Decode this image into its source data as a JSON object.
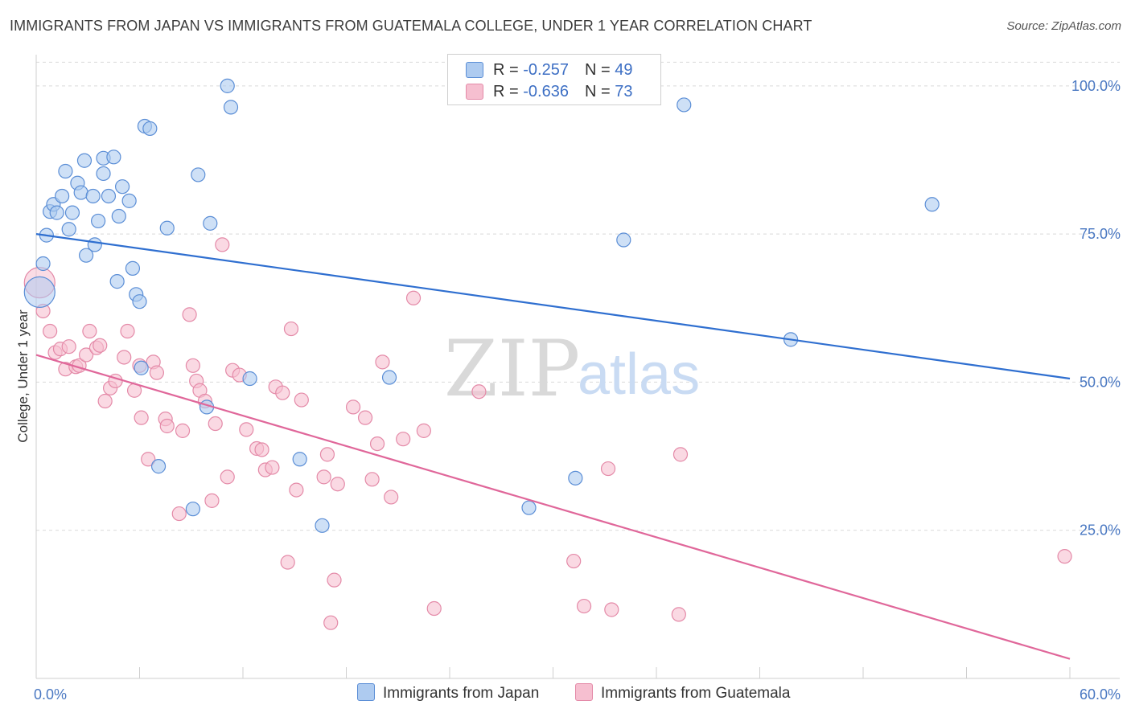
{
  "title": "IMMIGRANTS FROM JAPAN VS IMMIGRANTS FROM GUATEMALA COLLEGE, UNDER 1 YEAR CORRELATION CHART",
  "source": "Source: ZipAtlas.com",
  "watermark": {
    "zip": "ZIP",
    "atlas": "atlas"
  },
  "legend": {
    "japan": {
      "r_label": "R = ",
      "r_value": "-0.257",
      "n_label": "N = ",
      "n_value": "49"
    },
    "guatemala": {
      "r_label": "R = ",
      "r_value": "-0.636",
      "n_label": "N = ",
      "n_value": "73"
    }
  },
  "colors": {
    "japan_fill": "#aecbf0",
    "japan_stroke": "#5b8ed6",
    "japan_line": "#2f6fd0",
    "guatemala_fill": "#f6bfd0",
    "guatemala_stroke": "#e48aa8",
    "guatemala_line": "#e0679a",
    "grid": "#d9d9d9",
    "tick_text": "#4a78c2"
  },
  "chart_data": {
    "type": "scatter",
    "title": "IMMIGRANTS FROM JAPAN VS IMMIGRANTS FROM GUATEMALA COLLEGE, UNDER 1 YEAR CORRELATION CHART",
    "xlabel": "",
    "ylabel": "College, Under 1 year",
    "xlim": [
      0,
      60
    ],
    "ylim": [
      0,
      105
    ],
    "x_tick_labels": [
      "0.0%",
      "60.0%"
    ],
    "y_ticks": [
      25,
      50,
      75,
      100
    ],
    "y_tick_labels": [
      "25.0%",
      "50.0%",
      "75.0%",
      "100.0%"
    ],
    "grid": "horizontal dashed",
    "legend_placement": "top-center",
    "series": [
      {
        "name": "Immigrants from Japan",
        "trend": {
          "x": [
            0,
            60
          ],
          "y": [
            75.0,
            50.6
          ]
        },
        "points": [
          {
            "x": 0.2,
            "y": 65.2,
            "big": true
          },
          {
            "x": 0.4,
            "y": 70.0
          },
          {
            "x": 0.6,
            "y": 74.8
          },
          {
            "x": 0.8,
            "y": 78.8
          },
          {
            "x": 1.0,
            "y": 80.0
          },
          {
            "x": 1.2,
            "y": 78.6
          },
          {
            "x": 1.5,
            "y": 81.4
          },
          {
            "x": 1.7,
            "y": 85.6
          },
          {
            "x": 1.9,
            "y": 75.8
          },
          {
            "x": 2.1,
            "y": 78.6
          },
          {
            "x": 2.4,
            "y": 83.6
          },
          {
            "x": 2.6,
            "y": 82.0
          },
          {
            "x": 2.8,
            "y": 87.4
          },
          {
            "x": 2.9,
            "y": 71.4
          },
          {
            "x": 3.3,
            "y": 81.4
          },
          {
            "x": 3.4,
            "y": 73.2
          },
          {
            "x": 3.6,
            "y": 77.2
          },
          {
            "x": 3.9,
            "y": 85.2
          },
          {
            "x": 3.9,
            "y": 87.8
          },
          {
            "x": 4.2,
            "y": 81.4
          },
          {
            "x": 4.5,
            "y": 88.0
          },
          {
            "x": 4.7,
            "y": 67.0
          },
          {
            "x": 4.8,
            "y": 78.0
          },
          {
            "x": 5.0,
            "y": 83.0
          },
          {
            "x": 5.4,
            "y": 80.6
          },
          {
            "x": 5.6,
            "y": 69.2
          },
          {
            "x": 5.8,
            "y": 64.8
          },
          {
            "x": 6.0,
            "y": 63.6
          },
          {
            "x": 6.1,
            "y": 52.4
          },
          {
            "x": 6.3,
            "y": 93.2
          },
          {
            "x": 6.6,
            "y": 92.8
          },
          {
            "x": 7.1,
            "y": 35.8
          },
          {
            "x": 7.6,
            "y": 76.0
          },
          {
            "x": 9.1,
            "y": 28.6
          },
          {
            "x": 9.4,
            "y": 85.0
          },
          {
            "x": 9.9,
            "y": 45.8
          },
          {
            "x": 10.1,
            "y": 76.8
          },
          {
            "x": 11.1,
            "y": 100.0
          },
          {
            "x": 11.3,
            "y": 96.4
          },
          {
            "x": 12.4,
            "y": 50.6
          },
          {
            "x": 15.3,
            "y": 37.0
          },
          {
            "x": 16.6,
            "y": 25.8
          },
          {
            "x": 20.5,
            "y": 50.8
          },
          {
            "x": 28.6,
            "y": 28.8
          },
          {
            "x": 31.3,
            "y": 33.8
          },
          {
            "x": 34.1,
            "y": 74.0
          },
          {
            "x": 37.6,
            "y": 96.8
          },
          {
            "x": 43.8,
            "y": 57.2
          },
          {
            "x": 52.0,
            "y": 80.0
          }
        ]
      },
      {
        "name": "Immigrants from Guatemala",
        "trend": {
          "x": [
            0,
            60
          ],
          "y": [
            54.6,
            3.3
          ]
        },
        "points": [
          {
            "x": 0.2,
            "y": 66.8,
            "big": true
          },
          {
            "x": 0.4,
            "y": 62.0
          },
          {
            "x": 0.8,
            "y": 58.6
          },
          {
            "x": 1.1,
            "y": 55.0
          },
          {
            "x": 1.4,
            "y": 55.6
          },
          {
            "x": 1.7,
            "y": 52.2
          },
          {
            "x": 1.9,
            "y": 56.0
          },
          {
            "x": 2.3,
            "y": 52.6
          },
          {
            "x": 2.5,
            "y": 52.8
          },
          {
            "x": 2.9,
            "y": 54.6
          },
          {
            "x": 3.1,
            "y": 58.6
          },
          {
            "x": 3.5,
            "y": 55.8
          },
          {
            "x": 3.7,
            "y": 56.2
          },
          {
            "x": 4.0,
            "y": 46.8
          },
          {
            "x": 4.3,
            "y": 49.0
          },
          {
            "x": 4.6,
            "y": 50.2
          },
          {
            "x": 5.1,
            "y": 54.2
          },
          {
            "x": 5.3,
            "y": 58.6
          },
          {
            "x": 5.7,
            "y": 48.6
          },
          {
            "x": 6.0,
            "y": 52.8
          },
          {
            "x": 6.1,
            "y": 44.0
          },
          {
            "x": 6.5,
            "y": 37.0
          },
          {
            "x": 6.8,
            "y": 53.4
          },
          {
            "x": 7.0,
            "y": 51.6
          },
          {
            "x": 7.5,
            "y": 43.8
          },
          {
            "x": 7.6,
            "y": 42.6
          },
          {
            "x": 8.3,
            "y": 27.8
          },
          {
            "x": 8.5,
            "y": 41.8
          },
          {
            "x": 8.9,
            "y": 61.4
          },
          {
            "x": 9.1,
            "y": 52.8
          },
          {
            "x": 9.3,
            "y": 50.2
          },
          {
            "x": 9.5,
            "y": 48.6
          },
          {
            "x": 9.8,
            "y": 46.8
          },
          {
            "x": 10.2,
            "y": 30.0
          },
          {
            "x": 10.4,
            "y": 43.0
          },
          {
            "x": 10.8,
            "y": 73.2
          },
          {
            "x": 11.1,
            "y": 34.0
          },
          {
            "x": 11.4,
            "y": 52.0
          },
          {
            "x": 11.8,
            "y": 51.2
          },
          {
            "x": 12.2,
            "y": 42.0
          },
          {
            "x": 12.8,
            "y": 38.8
          },
          {
            "x": 13.1,
            "y": 38.6
          },
          {
            "x": 13.3,
            "y": 35.2
          },
          {
            "x": 13.7,
            "y": 35.6
          },
          {
            "x": 13.9,
            "y": 49.2
          },
          {
            "x": 14.3,
            "y": 48.2
          },
          {
            "x": 14.6,
            "y": 19.6
          },
          {
            "x": 14.8,
            "y": 59.0
          },
          {
            "x": 15.1,
            "y": 31.8
          },
          {
            "x": 15.4,
            "y": 47.0
          },
          {
            "x": 16.7,
            "y": 34.0
          },
          {
            "x": 16.9,
            "y": 37.8
          },
          {
            "x": 17.1,
            "y": 9.4
          },
          {
            "x": 17.3,
            "y": 16.6
          },
          {
            "x": 17.5,
            "y": 32.8
          },
          {
            "x": 18.4,
            "y": 45.8
          },
          {
            "x": 19.1,
            "y": 44.0
          },
          {
            "x": 19.5,
            "y": 33.6
          },
          {
            "x": 19.8,
            "y": 39.6
          },
          {
            "x": 20.1,
            "y": 53.4
          },
          {
            "x": 20.6,
            "y": 30.6
          },
          {
            "x": 21.3,
            "y": 40.4
          },
          {
            "x": 21.9,
            "y": 64.2
          },
          {
            "x": 22.5,
            "y": 41.8
          },
          {
            "x": 23.1,
            "y": 11.8
          },
          {
            "x": 25.7,
            "y": 48.4
          },
          {
            "x": 31.2,
            "y": 19.8
          },
          {
            "x": 31.8,
            "y": 12.2
          },
          {
            "x": 33.2,
            "y": 35.4
          },
          {
            "x": 33.4,
            "y": 11.6
          },
          {
            "x": 37.3,
            "y": 10.8
          },
          {
            "x": 37.4,
            "y": 37.8
          },
          {
            "x": 59.7,
            "y": 20.6
          }
        ]
      }
    ]
  }
}
